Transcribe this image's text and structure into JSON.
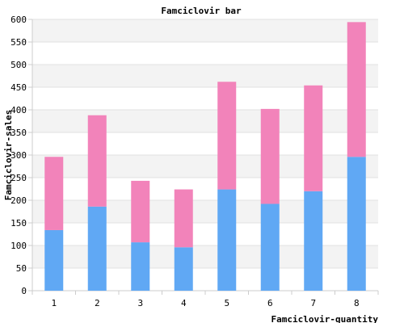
{
  "chart_data": {
    "type": "bar",
    "stacked": true,
    "title": "Famciclovir bar",
    "xlabel": "Famciclovir-quantity",
    "ylabel": "Famciclovir-sales",
    "categories": [
      "1",
      "2",
      "3",
      "4",
      "5",
      "6",
      "7",
      "8"
    ],
    "series": [
      {
        "color": "#60a8f4",
        "values": [
          134,
          186,
          107,
          96,
          224,
          192,
          220,
          296
        ]
      },
      {
        "color": "#f283ba",
        "values": [
          162,
          202,
          136,
          128,
          238,
          210,
          234,
          298
        ]
      }
    ],
    "ylim": [
      0,
      600
    ],
    "yticks": [
      "0",
      "50",
      "100",
      "150",
      "200",
      "250",
      "300",
      "350",
      "400",
      "450",
      "500",
      "550",
      "600"
    ],
    "grid": true,
    "grid_band_colors": [
      "#ffffff",
      "#f3f3f3"
    ],
    "legend": "none"
  }
}
